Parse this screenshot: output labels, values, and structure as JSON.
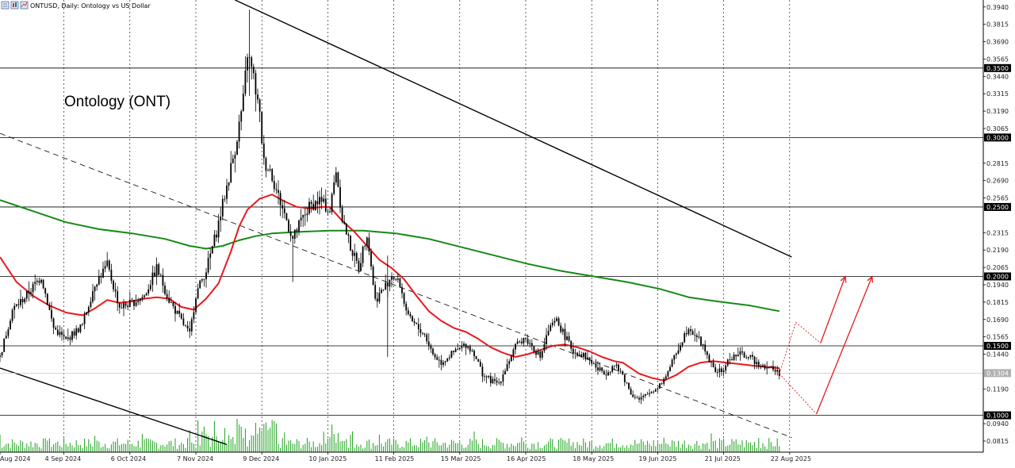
{
  "header": {
    "symbol_text": "ONTUSD, Daily:  Ontology vs US Dollar",
    "icons": [
      "chart-bars-icon",
      "chart-candles-icon",
      "chart-line-icon"
    ]
  },
  "colors": {
    "candle": "#000000",
    "ma_fast": "#e8191c",
    "ma_slow": "#158a15",
    "volume": "#1aa01a",
    "projection": "#e8191c",
    "channel": "#000000",
    "level_box": "#000000",
    "current_price_box": "#b0b0b0"
  },
  "chart_data": {
    "type": "candlestick",
    "title": "Ontology (ONT)",
    "timeframe": "Daily",
    "ylim": [
      0.0735,
      0.399
    ],
    "y_ticks": [
      "0.3940",
      "0.3815",
      "0.3690",
      "0.3565",
      "0.3440",
      "0.3315",
      "0.3190",
      "0.3065",
      "0.2815",
      "0.2690",
      "0.2565",
      "0.2315",
      "0.2190",
      "0.2065",
      "0.1940",
      "0.1815",
      "0.1690",
      "0.1565",
      "0.1440",
      "0.1190",
      "0.0940",
      "0.0815"
    ],
    "x_labels": [
      "Aug 2024",
      "4 Sep 2024",
      "6 Oct 2024",
      "7 Nov 2024",
      "9 Dec 2024",
      "10 Jan 2025",
      "11 Feb 2025",
      "15 Mar 2025",
      "16 Apr 2025",
      "18 May 2025",
      "19 Jun 2025",
      "21 Jul 2025",
      "22 Aug 2025"
    ],
    "x_label_index": [
      0,
      31,
      63,
      95,
      127,
      159,
      191,
      223,
      255,
      287,
      319,
      351,
      383
    ],
    "total_bars": 384,
    "last_bar_index": 378,
    "levels": [
      {
        "value": 0.35,
        "label": "0.3500"
      },
      {
        "value": 0.3,
        "label": "0.3000"
      },
      {
        "value": 0.25,
        "label": "0.2500"
      },
      {
        "value": 0.2,
        "label": "0.2000"
      },
      {
        "value": 0.15,
        "label": "0.1500"
      },
      {
        "value": 0.1,
        "label": "0.1000"
      }
    ],
    "current_price": {
      "value": 0.1304,
      "label": "0.1304"
    },
    "price_keypoints": [
      [
        0,
        0.142
      ],
      [
        6,
        0.176
      ],
      [
        12,
        0.185
      ],
      [
        20,
        0.2
      ],
      [
        26,
        0.163
      ],
      [
        32,
        0.154
      ],
      [
        40,
        0.165
      ],
      [
        46,
        0.195
      ],
      [
        52,
        0.208
      ],
      [
        58,
        0.178
      ],
      [
        64,
        0.181
      ],
      [
        70,
        0.186
      ],
      [
        76,
        0.206
      ],
      [
        82,
        0.183
      ],
      [
        88,
        0.168
      ],
      [
        92,
        0.158
      ],
      [
        95,
        0.187
      ],
      [
        100,
        0.205
      ],
      [
        105,
        0.232
      ],
      [
        110,
        0.265
      ],
      [
        114,
        0.292
      ],
      [
        118,
        0.327
      ],
      [
        120,
        0.361
      ],
      [
        123,
        0.343
      ],
      [
        126,
        0.315
      ],
      [
        128,
        0.282
      ],
      [
        131,
        0.277
      ],
      [
        134,
        0.262
      ],
      [
        138,
        0.245
      ],
      [
        142,
        0.227
      ],
      [
        146,
        0.24
      ],
      [
        150,
        0.25
      ],
      [
        155,
        0.255
      ],
      [
        160,
        0.247
      ],
      [
        163,
        0.277
      ],
      [
        166,
        0.242
      ],
      [
        170,
        0.221
      ],
      [
        174,
        0.206
      ],
      [
        178,
        0.232
      ],
      [
        182,
        0.183
      ],
      [
        186,
        0.191
      ],
      [
        190,
        0.201
      ],
      [
        194,
        0.194
      ],
      [
        198,
        0.17
      ],
      [
        202,
        0.164
      ],
      [
        206,
        0.158
      ],
      [
        210,
        0.144
      ],
      [
        214,
        0.138
      ],
      [
        218,
        0.143
      ],
      [
        222,
        0.147
      ],
      [
        226,
        0.151
      ],
      [
        230,
        0.145
      ],
      [
        234,
        0.13
      ],
      [
        238,
        0.125
      ],
      [
        242,
        0.123
      ],
      [
        246,
        0.137
      ],
      [
        250,
        0.149
      ],
      [
        254,
        0.156
      ],
      [
        258,
        0.15
      ],
      [
        262,
        0.142
      ],
      [
        266,
        0.161
      ],
      [
        270,
        0.168
      ],
      [
        274,
        0.157
      ],
      [
        278,
        0.146
      ],
      [
        282,
        0.144
      ],
      [
        286,
        0.14
      ],
      [
        290,
        0.133
      ],
      [
        294,
        0.131
      ],
      [
        298,
        0.136
      ],
      [
        302,
        0.129
      ],
      [
        306,
        0.116
      ],
      [
        310,
        0.111
      ],
      [
        314,
        0.115
      ],
      [
        318,
        0.119
      ],
      [
        322,
        0.126
      ],
      [
        326,
        0.138
      ],
      [
        330,
        0.152
      ],
      [
        334,
        0.164
      ],
      [
        338,
        0.157
      ],
      [
        342,
        0.147
      ],
      [
        346,
        0.133
      ],
      [
        350,
        0.131
      ],
      [
        354,
        0.141
      ],
      [
        358,
        0.144
      ],
      [
        362,
        0.143
      ],
      [
        366,
        0.139
      ],
      [
        370,
        0.136
      ],
      [
        374,
        0.134
      ],
      [
        378,
        0.1304
      ]
    ],
    "ma_fast_points": [
      [
        0,
        0.214
      ],
      [
        8,
        0.196
      ],
      [
        16,
        0.186
      ],
      [
        24,
        0.179
      ],
      [
        32,
        0.174
      ],
      [
        40,
        0.172
      ],
      [
        46,
        0.177
      ],
      [
        52,
        0.183
      ],
      [
        58,
        0.181
      ],
      [
        64,
        0.182
      ],
      [
        70,
        0.184
      ],
      [
        76,
        0.185
      ],
      [
        82,
        0.184
      ],
      [
        88,
        0.178
      ],
      [
        94,
        0.176
      ],
      [
        100,
        0.184
      ],
      [
        106,
        0.195
      ],
      [
        112,
        0.218
      ],
      [
        116,
        0.236
      ],
      [
        120,
        0.248
      ],
      [
        126,
        0.256
      ],
      [
        132,
        0.259
      ],
      [
        138,
        0.254
      ],
      [
        144,
        0.25
      ],
      [
        150,
        0.249
      ],
      [
        156,
        0.25
      ],
      [
        160,
        0.25
      ],
      [
        166,
        0.24
      ],
      [
        172,
        0.232
      ],
      [
        178,
        0.222
      ],
      [
        184,
        0.212
      ],
      [
        190,
        0.206
      ],
      [
        196,
        0.198
      ],
      [
        202,
        0.186
      ],
      [
        208,
        0.175
      ],
      [
        214,
        0.168
      ],
      [
        220,
        0.163
      ],
      [
        226,
        0.16
      ],
      [
        232,
        0.155
      ],
      [
        238,
        0.149
      ],
      [
        244,
        0.145
      ],
      [
        250,
        0.142
      ],
      [
        256,
        0.144
      ],
      [
        262,
        0.147
      ],
      [
        268,
        0.15
      ],
      [
        274,
        0.151
      ],
      [
        280,
        0.149
      ],
      [
        286,
        0.146
      ],
      [
        292,
        0.142
      ],
      [
        298,
        0.139
      ],
      [
        302,
        0.138
      ],
      [
        306,
        0.134
      ],
      [
        310,
        0.13
      ],
      [
        316,
        0.127
      ],
      [
        322,
        0.125
      ],
      [
        328,
        0.129
      ],
      [
        334,
        0.135
      ],
      [
        340,
        0.138
      ],
      [
        346,
        0.139
      ],
      [
        352,
        0.138
      ],
      [
        358,
        0.137
      ],
      [
        364,
        0.136
      ],
      [
        370,
        0.135
      ],
      [
        378,
        0.134
      ]
    ],
    "ma_slow_points": [
      [
        0,
        0.255
      ],
      [
        16,
        0.247
      ],
      [
        32,
        0.239
      ],
      [
        48,
        0.234
      ],
      [
        64,
        0.231
      ],
      [
        80,
        0.227
      ],
      [
        92,
        0.222
      ],
      [
        100,
        0.22
      ],
      [
        108,
        0.222
      ],
      [
        116,
        0.226
      ],
      [
        124,
        0.229
      ],
      [
        132,
        0.231
      ],
      [
        144,
        0.232
      ],
      [
        160,
        0.233
      ],
      [
        176,
        0.233
      ],
      [
        192,
        0.231
      ],
      [
        208,
        0.227
      ],
      [
        224,
        0.221
      ],
      [
        240,
        0.215
      ],
      [
        256,
        0.209
      ],
      [
        272,
        0.204
      ],
      [
        288,
        0.2
      ],
      [
        304,
        0.196
      ],
      [
        320,
        0.191
      ],
      [
        334,
        0.185
      ],
      [
        348,
        0.182
      ],
      [
        364,
        0.179
      ],
      [
        378,
        0.175
      ]
    ],
    "channel_upper": [
      [
        114,
        0.399
      ],
      [
        384,
        0.214
      ]
    ],
    "channel_middle": [
      [
        0,
        0.303
      ],
      [
        384,
        0.084
      ]
    ],
    "channel_lower": [
      [
        0,
        0.134
      ],
      [
        110,
        0.079
      ]
    ],
    "projection_dotted_up": [
      [
        378,
        0.13
      ],
      [
        386,
        0.167
      ],
      [
        398,
        0.152
      ]
    ],
    "projection_dotted_down": [
      [
        378,
        0.13
      ],
      [
        396,
        0.101
      ]
    ],
    "projection_arrow_1": [
      [
        398,
        0.152
      ],
      [
        410,
        0.2
      ]
    ],
    "projection_arrow_2": [
      [
        396,
        0.101
      ],
      [
        423,
        0.2
      ]
    ]
  }
}
